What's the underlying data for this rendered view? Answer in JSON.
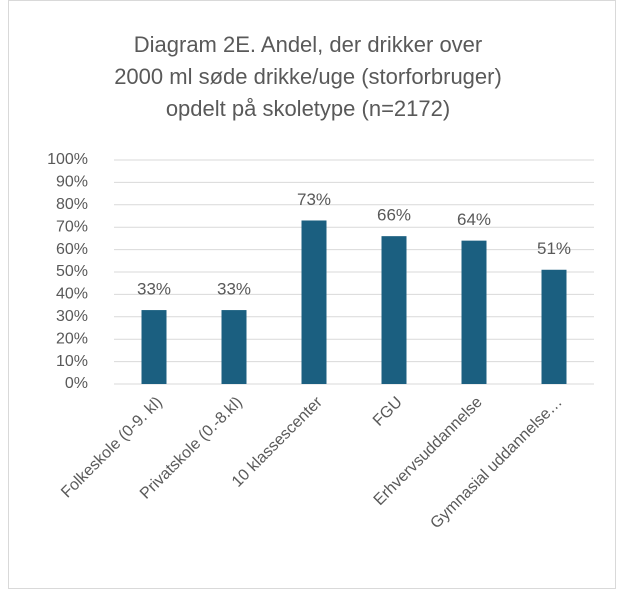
{
  "chart_data": {
    "type": "bar",
    "title": [
      "Diagram 2E. Andel, der drikker over",
      "2000 ml søde drikke/uge (storforbruger)",
      "opdelt på skoletype (n=2172)"
    ],
    "categories": [
      "Folkeskole (0-9. kl)",
      "Privatskole (0.-8.kl)",
      "10 klassescenter",
      "FGU",
      "Erhvervsuddannelse",
      "Gymnasial uddannelse…"
    ],
    "values": [
      33,
      33,
      73,
      66,
      64,
      51
    ],
    "value_labels": [
      "33%",
      "33%",
      "73%",
      "66%",
      "64%",
      "51%"
    ],
    "color": "#1b5f80",
    "ylim": [
      0,
      100
    ],
    "yticks": [
      {
        "value": 0,
        "label": "0%"
      },
      {
        "value": 10,
        "label": "10%"
      },
      {
        "value": 20,
        "label": "20%"
      },
      {
        "value": 30,
        "label": "30%"
      },
      {
        "value": 40,
        "label": "40%"
      },
      {
        "value": 50,
        "label": "50%"
      },
      {
        "value": 60,
        "label": "60%"
      },
      {
        "value": 70,
        "label": "70%"
      },
      {
        "value": 80,
        "label": "80%"
      },
      {
        "value": 90,
        "label": "90%"
      },
      {
        "value": 100,
        "label": "100%"
      }
    ],
    "grid": true
  }
}
